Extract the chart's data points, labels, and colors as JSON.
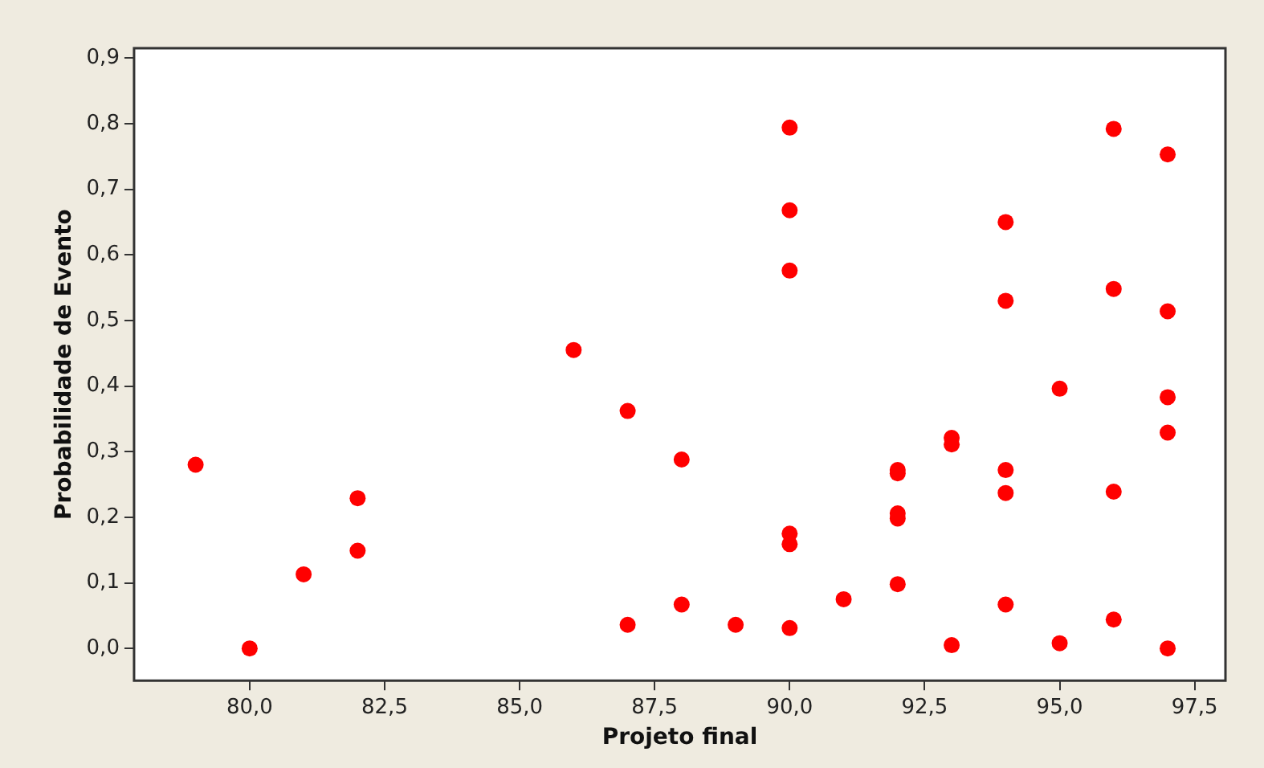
{
  "chart_data": {
    "type": "scatter",
    "xlabel": "Projeto final",
    "ylabel": "Probabilidade de Evento",
    "x": [
      79,
      80,
      81,
      82,
      82,
      86,
      87,
      87,
      88,
      88,
      89,
      90,
      90,
      90,
      90,
      90,
      90,
      91,
      92,
      92,
      92,
      92,
      92,
      93,
      93,
      93,
      94,
      94,
      94,
      94,
      94,
      95,
      95,
      96,
      96,
      96,
      96,
      97,
      97,
      97,
      97,
      97
    ],
    "series": [
      {
        "color": "#ff0000",
        "values": [
          0.28,
          0.0,
          0.113,
          0.229,
          0.149,
          0.455,
          0.362,
          0.036,
          0.288,
          0.067,
          0.036,
          0.794,
          0.668,
          0.576,
          0.175,
          0.159,
          0.031,
          0.075,
          0.267,
          0.272,
          0.206,
          0.198,
          0.098,
          0.321,
          0.311,
          0.005,
          0.65,
          0.53,
          0.272,
          0.237,
          0.067,
          0.396,
          0.008,
          0.792,
          0.548,
          0.239,
          0.044,
          0.753,
          0.514,
          0.383,
          0.329,
          0.0
        ]
      }
    ],
    "marker": "circle",
    "grid": false,
    "legend": false,
    "xlim": [
      77.86,
      98.07
    ],
    "ylim": [
      -0.049,
      0.915
    ],
    "xticks": [
      {
        "value": 80,
        "label": "80,0"
      },
      {
        "value": 82.5,
        "label": "82,5"
      },
      {
        "value": 85,
        "label": "85,0"
      },
      {
        "value": 87.5,
        "label": "87,5"
      },
      {
        "value": 90,
        "label": "90,0"
      },
      {
        "value": 92.5,
        "label": "92,5"
      },
      {
        "value": 95,
        "label": "95,0"
      },
      {
        "value": 97.5,
        "label": "97,5"
      }
    ],
    "yticks": [
      {
        "value": 0,
        "label": "0,0"
      },
      {
        "value": 0.1,
        "label": "0,1"
      },
      {
        "value": 0.2,
        "label": "0,2"
      },
      {
        "value": 0.3,
        "label": "0,3"
      },
      {
        "value": 0.4,
        "label": "0,4"
      },
      {
        "value": 0.5,
        "label": "0,5"
      },
      {
        "value": 0.6,
        "label": "0,6"
      },
      {
        "value": 0.7,
        "label": "0,7"
      },
      {
        "value": 0.8,
        "label": "0,8"
      },
      {
        "value": 0.9,
        "label": "0,9"
      }
    ]
  }
}
